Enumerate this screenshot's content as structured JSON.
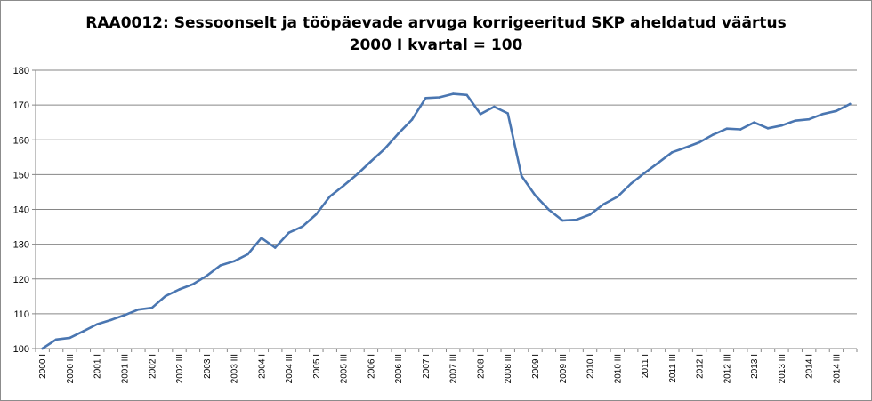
{
  "chart_data": {
    "type": "line",
    "title": "RAA0012: Sessoonselt  ja tööpäevade  arvuga korrigeeritud SKP aheldatud väärtus",
    "subtitle": "2000 I kvartal = 100",
    "xlabel": "",
    "ylabel": "",
    "ylim": [
      100,
      180
    ],
    "yticks": [
      100,
      110,
      120,
      130,
      140,
      150,
      160,
      170,
      180
    ],
    "grid": true,
    "legend": "none",
    "line_color": "#4a76b1",
    "categories": [
      "2000 I",
      "2000 II",
      "2000 III",
      "2000 IV",
      "2001 I",
      "2001 II",
      "2001 III",
      "2001 IV",
      "2002 I",
      "2002 II",
      "2002 III",
      "2002 IV",
      "2003 I",
      "2003 II",
      "2003 III",
      "2003 IV",
      "2004 I",
      "2004 II",
      "2004 III",
      "2004 IV",
      "2005 I",
      "2005 II",
      "2005 III",
      "2005 IV",
      "2006 I",
      "2006 II",
      "2006 III",
      "2006 IV",
      "2007 I",
      "2007 II",
      "2007 III",
      "2007 IV",
      "2008 I",
      "2008 II",
      "2008 III",
      "2008 IV",
      "2009 I",
      "2009 II",
      "2009 III",
      "2009 IV",
      "2010 I",
      "2010 II",
      "2010 III",
      "2010 IV",
      "2011 I",
      "2011 II",
      "2011 III",
      "2011 IV",
      "2012 I",
      "2012 II",
      "2012 III",
      "2012 IV",
      "2013 I",
      "2013 II",
      "2013 III",
      "2013 IV",
      "2014 I",
      "2014 II",
      "2014 III",
      "2014 IV"
    ],
    "tick_labels": [
      "2000 I",
      "2000 III",
      "2001 I",
      "2001 III",
      "2002 I",
      "2002 III",
      "2003 I",
      "2003 III",
      "2004 I",
      "2004 III",
      "2005 I",
      "2005 III",
      "2006 I",
      "2006 III",
      "2007 I",
      "2007 III",
      "2008 I",
      "2008 III",
      "2009 I",
      "2009 III",
      "2010 I",
      "2010 III",
      "2011 I",
      "2011 III",
      "2012 I",
      "2012 III",
      "2013 I",
      "2013 III",
      "2014 I",
      "2014 III"
    ],
    "values": [
      100.0,
      102.6,
      103.1,
      105.0,
      107.0,
      108.2,
      109.6,
      111.2,
      111.7,
      115.1,
      117.0,
      118.5,
      120.9,
      123.9,
      125.1,
      127.1,
      131.8,
      129.0,
      133.3,
      135.1,
      138.6,
      143.7,
      146.8,
      150.1,
      153.8,
      157.4,
      161.8,
      165.8,
      172.0,
      172.2,
      173.2,
      172.9,
      167.4,
      169.5,
      167.6,
      149.6,
      144.0,
      139.9,
      136.8,
      137.0,
      138.5,
      141.5,
      143.6,
      147.4,
      150.5,
      153.4,
      156.4,
      157.8,
      159.3,
      161.5,
      163.2,
      163.0,
      165.0,
      163.3,
      164.1,
      165.5,
      165.9,
      167.4,
      168.3,
      170.3
    ]
  }
}
